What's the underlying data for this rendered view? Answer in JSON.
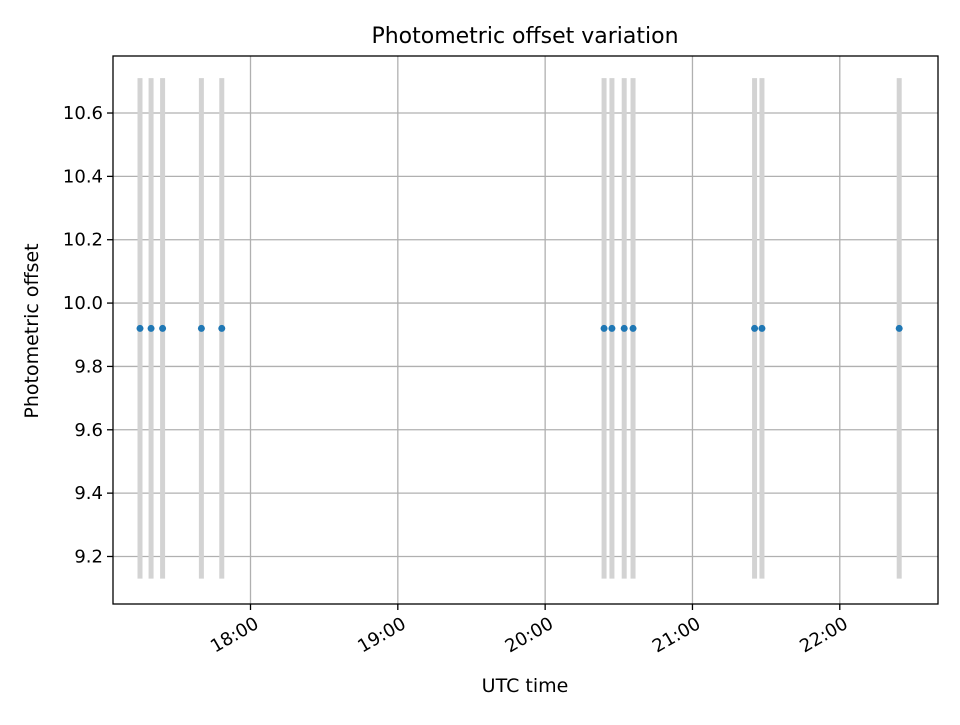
{
  "chart_data": {
    "type": "scatter",
    "title": "Photometric offset variation",
    "xlabel": "UTC time",
    "ylabel": "Photometric offset",
    "x_axis": "time",
    "x_ticks": [
      "18:00",
      "19:00",
      "20:00",
      "21:00",
      "22:00"
    ],
    "x_tick_minutes": [
      1080,
      1140,
      1200,
      1260,
      1320
    ],
    "xlim_minutes": [
      1024,
      1360
    ],
    "y_ticks": [
      "9.2",
      "9.4",
      "9.6",
      "9.8",
      "10.0",
      "10.2",
      "10.4",
      "10.6"
    ],
    "ylim": [
      9.05,
      10.78
    ],
    "grid": true,
    "series": [
      {
        "marker": "dot",
        "color": "#1f77b4",
        "x": [
          "17:15",
          "17:19",
          "17:24",
          "17:40",
          "17:48",
          "20:24",
          "20:27",
          "20:32",
          "20:36",
          "21:25",
          "21:28",
          "22:24"
        ],
        "x_minutes": [
          1035.0,
          1039.5,
          1044.2,
          1060.0,
          1068.3,
          1224.0,
          1227.2,
          1232.2,
          1235.8,
          1285.3,
          1288.3,
          1344.2
        ],
        "y": [
          9.92,
          9.92,
          9.92,
          9.92,
          9.92,
          9.92,
          9.92,
          9.92,
          9.92,
          9.92,
          9.92,
          9.92
        ],
        "errorbar_low": [
          9.13,
          9.13,
          9.13,
          9.13,
          9.13,
          9.13,
          9.13,
          9.13,
          9.13,
          9.13,
          9.13,
          9.13
        ],
        "errorbar_high": [
          10.71,
          10.71,
          10.71,
          10.71,
          10.71,
          10.71,
          10.71,
          10.71,
          10.71,
          10.71,
          10.71,
          10.71
        ],
        "errorbar_color": "#d3d3d3"
      }
    ]
  }
}
